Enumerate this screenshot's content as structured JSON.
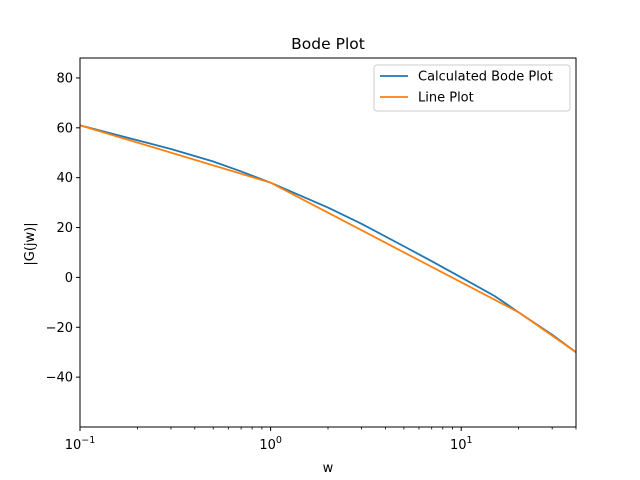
{
  "chart_data": {
    "type": "line",
    "title": "Bode Plot",
    "xlabel": "w",
    "ylabel": "|G(jw)|",
    "xscale": "log",
    "xlim": [
      0.1,
      40
    ],
    "ylim": [
      -60,
      88
    ],
    "x_ticks": [
      {
        "value": 0.1,
        "base": "10",
        "exp": "−1"
      },
      {
        "value": 1,
        "base": "10",
        "exp": "0"
      },
      {
        "value": 10,
        "base": "10",
        "exp": "1"
      }
    ],
    "y_ticks": [
      -40,
      -20,
      0,
      20,
      40,
      60,
      80
    ],
    "grid": false,
    "legend_position": "top-right",
    "series": [
      {
        "name": "Calculated Bode Plot",
        "color": "#1f77b4",
        "points": [
          [
            0.1,
            61
          ],
          [
            0.2,
            55
          ],
          [
            0.3,
            51.5
          ],
          [
            0.5,
            46.5
          ],
          [
            0.7,
            42.5
          ],
          [
            1,
            38
          ],
          [
            2,
            28
          ],
          [
            3,
            21.5
          ],
          [
            5,
            12.5
          ],
          [
            7,
            6.5
          ],
          [
            10,
            0
          ],
          [
            15,
            -7.5
          ],
          [
            20,
            -14
          ],
          [
            30,
            -23
          ],
          [
            40,
            -30
          ]
        ]
      },
      {
        "name": "Line Plot",
        "color": "#ff7f0e",
        "points": [
          [
            0.1,
            61
          ],
          [
            1,
            38
          ],
          [
            20,
            -14
          ],
          [
            40,
            -30
          ]
        ]
      }
    ]
  }
}
